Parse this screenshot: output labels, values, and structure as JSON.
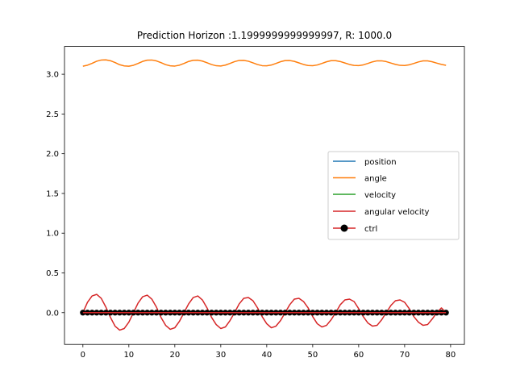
{
  "chart_data": {
    "type": "line",
    "title": "Prediction Horizon :1.1999999999999997, R: 1000.0",
    "xlabel": "",
    "ylabel": "",
    "xlim": [
      -4,
      83
    ],
    "ylim": [
      -0.4,
      3.35
    ],
    "x_ticks": [
      0,
      10,
      20,
      30,
      40,
      50,
      60,
      70,
      80
    ],
    "y_ticks": [
      0.0,
      0.5,
      1.0,
      1.5,
      2.0,
      2.5,
      3.0
    ],
    "x_tick_labels": [
      "0",
      "10",
      "20",
      "30",
      "40",
      "50",
      "60",
      "70",
      "80"
    ],
    "y_tick_labels": [
      "0.0",
      "0.5",
      "1.0",
      "1.5",
      "2.0",
      "2.5",
      "3.0"
    ],
    "legend_position": "center-right",
    "x": [
      0,
      1,
      2,
      3,
      4,
      5,
      6,
      7,
      8,
      9,
      10,
      11,
      12,
      13,
      14,
      15,
      16,
      17,
      18,
      19,
      20,
      21,
      22,
      23,
      24,
      25,
      26,
      27,
      28,
      29,
      30,
      31,
      32,
      33,
      34,
      35,
      36,
      37,
      38,
      39,
      40,
      41,
      42,
      43,
      44,
      45,
      46,
      47,
      48,
      49,
      50,
      51,
      52,
      53,
      54,
      55,
      56,
      57,
      58,
      59,
      60,
      61,
      62,
      63,
      64,
      65,
      66,
      67,
      68,
      69,
      70,
      71,
      72,
      73,
      74,
      75,
      76,
      77,
      78,
      79
    ],
    "series": [
      {
        "name": "position",
        "color": "#1f77b4",
        "values": [
          0,
          0,
          0,
          0,
          0,
          0,
          0,
          0,
          0,
          0,
          0,
          0,
          0,
          0,
          0,
          0,
          0,
          0,
          0,
          0,
          0,
          0,
          0,
          0,
          0,
          0,
          0,
          0,
          0,
          0,
          0,
          0,
          0,
          0,
          0,
          0,
          0,
          0,
          0,
          0,
          0,
          0,
          0,
          0,
          0,
          0,
          0,
          0,
          0,
          0,
          0,
          0,
          0,
          0,
          0,
          0,
          0,
          0,
          0,
          0,
          0,
          0,
          0,
          0,
          0,
          0,
          0,
          0,
          0,
          0,
          0,
          0,
          0,
          0,
          0,
          0,
          0,
          0,
          0,
          0
        ]
      },
      {
        "name": "angle",
        "color": "#ff7f0e",
        "values": [
          3.101,
          3.114,
          3.137,
          3.164,
          3.179,
          3.181,
          3.17,
          3.147,
          3.12,
          3.105,
          3.101,
          3.113,
          3.136,
          3.162,
          3.177,
          3.179,
          3.168,
          3.146,
          3.121,
          3.106,
          3.103,
          3.114,
          3.136,
          3.161,
          3.176,
          3.177,
          3.166,
          3.145,
          3.122,
          3.107,
          3.104,
          3.115,
          3.136,
          3.159,
          3.174,
          3.175,
          3.164,
          3.144,
          3.122,
          3.108,
          3.106,
          3.116,
          3.136,
          3.158,
          3.172,
          3.173,
          3.162,
          3.143,
          3.123,
          3.11,
          3.107,
          3.117,
          3.136,
          3.157,
          3.171,
          3.171,
          3.16,
          3.142,
          3.123,
          3.111,
          3.109,
          3.118,
          3.136,
          3.156,
          3.169,
          3.169,
          3.159,
          3.141,
          3.124,
          3.112,
          3.11,
          3.119,
          3.136,
          3.155,
          3.168,
          3.168,
          3.157,
          3.14,
          3.124,
          3.113
        ]
      },
      {
        "name": "velocity",
        "color": "#2ca02c",
        "values": [
          0,
          0,
          0,
          0,
          0,
          0,
          0,
          0,
          0,
          0,
          0,
          0,
          0,
          0,
          0,
          0,
          0,
          0,
          0,
          0,
          0,
          0,
          0,
          0,
          0,
          0,
          0,
          0,
          0,
          0,
          0,
          0,
          0,
          0,
          0,
          0,
          0,
          0,
          0,
          0,
          0,
          0,
          0,
          0,
          0,
          0,
          0,
          0,
          0,
          0,
          0,
          0,
          0,
          0,
          0,
          0,
          0,
          0,
          0,
          0,
          0,
          0,
          0,
          0,
          0,
          0,
          0,
          0,
          0,
          0,
          0,
          0,
          0,
          0,
          0,
          0,
          0,
          0,
          0,
          0
        ]
      },
      {
        "name": "angular velocity",
        "color": "#d62728",
        "values": [
          0.0,
          0.13,
          0.21,
          0.23,
          0.18,
          0.07,
          -0.06,
          -0.17,
          -0.22,
          -0.2,
          -0.12,
          0.0,
          0.12,
          0.2,
          0.22,
          0.17,
          0.07,
          -0.06,
          -0.16,
          -0.21,
          -0.19,
          -0.11,
          0.0,
          0.11,
          0.19,
          0.21,
          0.16,
          0.06,
          -0.06,
          -0.15,
          -0.2,
          -0.18,
          -0.1,
          0.0,
          0.11,
          0.18,
          0.19,
          0.15,
          0.06,
          -0.05,
          -0.14,
          -0.19,
          -0.17,
          -0.1,
          0.0,
          0.1,
          0.17,
          0.18,
          0.14,
          0.06,
          -0.05,
          -0.14,
          -0.18,
          -0.16,
          -0.09,
          0.0,
          0.1,
          0.16,
          0.17,
          0.14,
          0.05,
          -0.05,
          -0.13,
          -0.17,
          -0.16,
          -0.09,
          0.0,
          0.09,
          0.15,
          0.16,
          0.13,
          0.05,
          -0.05,
          -0.12,
          -0.16,
          -0.15,
          -0.08,
          0.0,
          0.06,
          0.0
        ]
      },
      {
        "name": "ctrl",
        "color": "#000000",
        "line_color": "#d62728",
        "marker": "circle",
        "values": [
          0,
          0,
          0,
          0,
          0,
          0,
          0,
          0,
          0,
          0,
          0,
          0,
          0,
          0,
          0,
          0,
          0,
          0,
          0,
          0,
          0,
          0,
          0,
          0,
          0,
          0,
          0,
          0,
          0,
          0,
          0,
          0,
          0,
          0,
          0,
          0,
          0,
          0,
          0,
          0,
          0,
          0,
          0,
          0,
          0,
          0,
          0,
          0,
          0,
          0,
          0,
          0,
          0,
          0,
          0,
          0,
          0,
          0,
          0,
          0,
          0,
          0,
          0,
          0,
          0,
          0,
          0,
          0,
          0,
          0,
          0,
          0,
          0,
          0,
          0,
          0,
          0,
          0,
          0,
          0
        ]
      }
    ]
  }
}
